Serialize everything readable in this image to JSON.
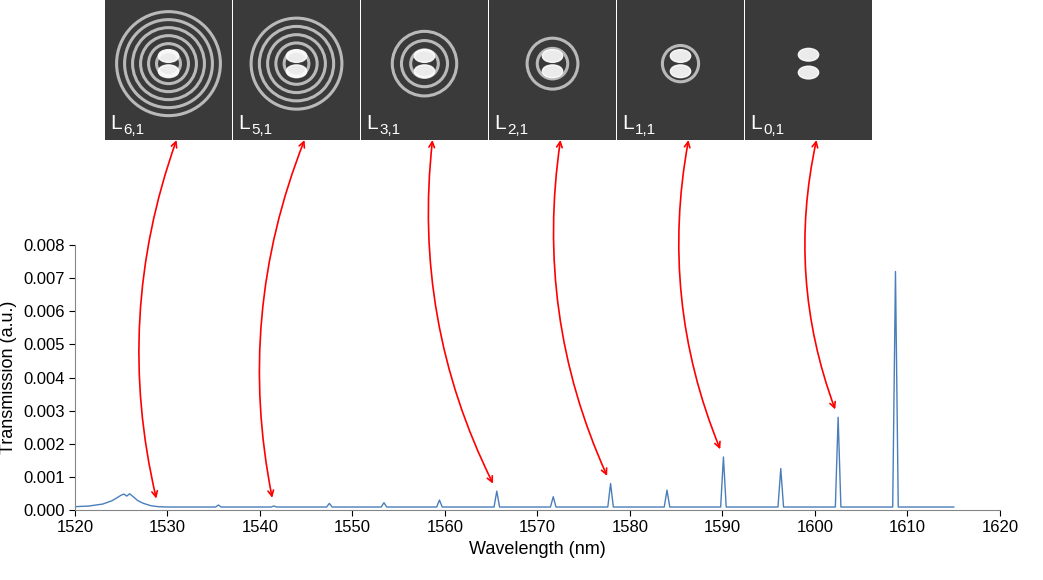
{
  "chart_data": {
    "type": "line",
    "x_label": "Wavelength (nm)",
    "y_label": "Transmission (a.u.)",
    "xlim": [
      1520,
      1620
    ],
    "xticks": [
      1520,
      1530,
      1540,
      1550,
      1560,
      1570,
      1580,
      1590,
      1600,
      1610,
      1620
    ],
    "ylim": [
      0,
      0.008
    ],
    "yticks": [
      {
        "value": 0,
        "label": "0.000"
      },
      {
        "value": 0.001,
        "label": "0.001"
      },
      {
        "value": 0.002,
        "label": "0.002"
      },
      {
        "value": 0.003,
        "label": "0.003"
      },
      {
        "value": 0.004,
        "label": "0.004"
      },
      {
        "value": 0.005,
        "label": "0.005"
      },
      {
        "value": 0.006,
        "label": "0.006"
      },
      {
        "value": 0.007,
        "label": "0.007"
      },
      {
        "value": 0.008,
        "label": "0.008"
      }
    ],
    "grid": false,
    "color": "#4a7ebb",
    "x": [
      1520,
      1521.5,
      1523,
      1524,
      1524.6,
      1525.0,
      1525.3,
      1525.6,
      1525.9,
      1526.3,
      1526.8,
      1527.4,
      1528.2,
      1529.0,
      1530,
      1535.2,
      1535.5,
      1535.8,
      1541.2,
      1541.5,
      1541.8,
      1547.2,
      1547.5,
      1547.8,
      1553.1,
      1553.4,
      1553.7,
      1559.1,
      1559.4,
      1559.7,
      1565.3,
      1565.6,
      1565.9,
      1571.4,
      1571.7,
      1572.0,
      1577.6,
      1577.9,
      1578.2,
      1583.7,
      1584.0,
      1584.3,
      1589.8,
      1590.1,
      1590.4,
      1596.0,
      1596.3,
      1596.6,
      1602.2,
      1602.5,
      1602.8,
      1608.4,
      1608.7,
      1609.0,
      1615
    ],
    "values": [
      0.0001,
      0.00012,
      0.00018,
      0.00028,
      0.00038,
      0.00045,
      0.00048,
      0.00042,
      0.00049,
      0.0004,
      0.00028,
      0.0002,
      0.00013,
      0.0001,
      9e-05,
      9e-05,
      0.00015,
      9e-05,
      9e-05,
      0.00012,
      9e-05,
      9e-05,
      0.0002,
      9e-05,
      9e-05,
      0.00022,
      9e-05,
      9e-05,
      0.0003,
      9e-05,
      9e-05,
      0.00057,
      9e-05,
      9e-05,
      0.0004,
      9e-05,
      9e-05,
      0.0008,
      9e-05,
      9e-05,
      0.0006,
      9e-05,
      9e-05,
      0.0016,
      9e-05,
      9e-05,
      0.00125,
      9e-05,
      9e-05,
      0.0028,
      9e-05,
      9e-05,
      0.0072,
      9e-05,
      9e-05
    ],
    "modes": [
      {
        "name": "L",
        "index": "6,1",
        "wavelength": 1529.0
      },
      {
        "name": "L",
        "index": "5,1",
        "wavelength": 1541.5
      },
      {
        "name": "L",
        "index": "3,1",
        "wavelength": 1565.6
      },
      {
        "name": "L",
        "index": "2,1",
        "wavelength": 1577.9
      },
      {
        "name": "L",
        "index": "1,1",
        "wavelength": 1590.1
      },
      {
        "name": "L",
        "index": "0,1",
        "wavelength": 1602.5
      }
    ]
  }
}
